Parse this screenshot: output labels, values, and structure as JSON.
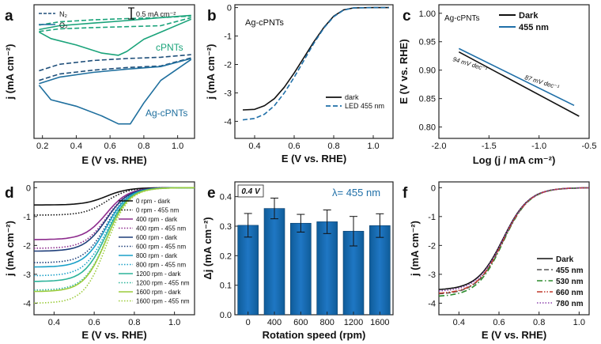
{
  "chart_data": [
    {
      "id": "a",
      "type": "line",
      "letter": "a",
      "xlabel": "E (V vs. RHE)",
      "ylabel": "j (mA cm⁻²)",
      "xlim": [
        0.15,
        1.1
      ],
      "ylim": [
        -3.2,
        0.95
      ],
      "xticks": [
        0.2,
        0.4,
        0.6,
        0.8,
        1.0
      ],
      "xtick_labels": [
        "0.2",
        "0.4",
        "0.6",
        "0.8",
        "1.0"
      ],
      "scale_bar": "0.5 mA cm⁻²",
      "legend": [
        {
          "label": "N₂",
          "style": "dashed"
        },
        {
          "label": "O₂",
          "style": "solid"
        }
      ],
      "annotations": [
        {
          "text": "cPNTs",
          "color": "#1aa37a"
        },
        {
          "text": "Ag-cPNTs",
          "color": "#1f6f9e"
        }
      ],
      "series": [
        {
          "name": "cPNTs N2 upper",
          "color": "#1aa37a",
          "style": "dashed",
          "x": [
            0.18,
            0.3,
            0.5,
            0.7,
            0.9,
            1.08
          ],
          "y": [
            0.32,
            0.42,
            0.48,
            0.52,
            0.55,
            0.6
          ]
        },
        {
          "name": "cPNTs N2 lower",
          "color": "#1aa37a",
          "style": "dashed",
          "x": [
            0.18,
            0.3,
            0.5,
            0.7,
            0.9,
            1.08
          ],
          "y": [
            0.12,
            0.2,
            0.24,
            0.27,
            0.3,
            0.55
          ]
        },
        {
          "name": "cPNTs O2 upper",
          "color": "#1aa37a",
          "style": "solid",
          "x": [
            0.18,
            0.3,
            0.5,
            0.7,
            0.9,
            1.08
          ],
          "y": [
            0.18,
            0.3,
            0.38,
            0.46,
            0.55,
            0.62
          ]
        },
        {
          "name": "cPNTs O2 lower",
          "color": "#1aa37a",
          "style": "solid",
          "x": [
            0.18,
            0.25,
            0.4,
            0.55,
            0.65,
            0.7,
            0.8,
            0.9,
            1.08
          ],
          "y": [
            0.1,
            -0.1,
            -0.3,
            -0.55,
            -0.62,
            -0.5,
            -0.12,
            0.1,
            0.5
          ]
        },
        {
          "name": "Ag-cPNTs N2 upper",
          "color": "#1f4f7a",
          "style": "dashed",
          "x": [
            0.18,
            0.3,
            0.5,
            0.7,
            0.9,
            1.08
          ],
          "y": [
            -1.1,
            -0.9,
            -0.78,
            -0.72,
            -0.68,
            -0.6
          ]
        },
        {
          "name": "Ag-cPNTs N2 lower",
          "color": "#1f4f7a",
          "style": "dashed",
          "x": [
            0.18,
            0.3,
            0.5,
            0.7,
            0.9,
            1.08
          ],
          "y": [
            -1.4,
            -1.2,
            -1.08,
            -1.0,
            -0.95,
            -0.7
          ]
        },
        {
          "name": "Ag-cPNTs O2 upper",
          "color": "#1f6f9e",
          "style": "solid",
          "x": [
            0.18,
            0.3,
            0.5,
            0.7,
            0.9,
            1.08
          ],
          "y": [
            -1.5,
            -1.3,
            -1.15,
            -1.05,
            -0.97,
            -0.72
          ]
        },
        {
          "name": "Ag-cPNTs O2 lower",
          "color": "#1f6f9e",
          "style": "solid",
          "x": [
            0.18,
            0.25,
            0.4,
            0.55,
            0.65,
            0.72,
            0.8,
            0.9,
            1.08
          ],
          "y": [
            -1.55,
            -2.0,
            -2.2,
            -2.5,
            -2.75,
            -2.75,
            -2.1,
            -1.4,
            -0.75
          ]
        }
      ]
    },
    {
      "id": "b",
      "type": "line",
      "letter": "b",
      "xlabel": "E (V vs. RHE)",
      "ylabel": "j (mA cm⁻²)",
      "xlim": [
        0.3,
        1.1
      ],
      "ylim": [
        -4.6,
        0.1
      ],
      "xticks": [
        0.4,
        0.6,
        0.8,
        1.0
      ],
      "xtick_labels": [
        "0.4",
        "0.6",
        "0.8",
        "1.0"
      ],
      "yticks": [
        0,
        -1,
        -2,
        -3,
        -4
      ],
      "ytick_labels": [
        "0",
        "-1",
        "-2",
        "-3",
        "-4"
      ],
      "inset_label": "Ag-cPNTs",
      "series": [
        {
          "name": "dark",
          "color": "#111111",
          "style": "solid",
          "x": [
            0.34,
            0.4,
            0.45,
            0.5,
            0.55,
            0.6,
            0.65,
            0.7,
            0.75,
            0.8,
            0.85,
            0.9,
            1.0,
            1.08
          ],
          "y": [
            -3.6,
            -3.58,
            -3.45,
            -3.2,
            -2.8,
            -2.3,
            -1.75,
            -1.2,
            -0.7,
            -0.3,
            -0.08,
            -0.01,
            0,
            0
          ]
        },
        {
          "name": "LED 455 nm",
          "color": "#1f6fa8",
          "style": "dashed",
          "x": [
            0.34,
            0.4,
            0.45,
            0.5,
            0.55,
            0.6,
            0.65,
            0.7,
            0.75,
            0.8,
            0.85,
            0.9,
            1.0,
            1.08
          ],
          "y": [
            -3.95,
            -3.9,
            -3.75,
            -3.45,
            -3.0,
            -2.45,
            -1.85,
            -1.25,
            -0.72,
            -0.32,
            -0.09,
            -0.01,
            0,
            0
          ]
        }
      ]
    },
    {
      "id": "c",
      "type": "line",
      "letter": "c",
      "xlabel": "Log (j / mA cm⁻²)",
      "ylabel": "E (V vs. RHE)",
      "xlim": [
        -2.0,
        -0.5
      ],
      "ylim": [
        0.78,
        1.015
      ],
      "xticks": [
        -2.0,
        -1.5,
        -1.0,
        -0.5
      ],
      "xtick_labels": [
        "-2.0",
        "-1.5",
        "-1.0",
        "-0.5"
      ],
      "yticks": [
        0.8,
        0.85,
        0.9,
        0.95,
        1.0
      ],
      "ytick_labels": [
        "0.80",
        "0.85",
        "0.90",
        "0.95",
        "1.00"
      ],
      "inset_label": "Ag-cPNTs",
      "annotations": [
        {
          "text": "94 mV dec⁻¹"
        },
        {
          "text": "87 mV dec⁻¹"
        }
      ],
      "series": [
        {
          "name": "Dark",
          "color": "#111111",
          "style": "solid",
          "x": [
            -1.8,
            -0.6
          ],
          "y": [
            0.932,
            0.819
          ]
        },
        {
          "name": "455 nm",
          "color": "#1f6fa8",
          "style": "solid",
          "x": [
            -1.8,
            -0.65
          ],
          "y": [
            0.938,
            0.838
          ]
        }
      ]
    },
    {
      "id": "d",
      "type": "line",
      "letter": "d",
      "xlabel": "E (V vs. RHE)",
      "ylabel": "j (mA cm⁻²)",
      "xlim": [
        0.3,
        1.1
      ],
      "ylim": [
        -4.4,
        0.2
      ],
      "xticks": [
        0.4,
        0.6,
        0.8,
        1.0
      ],
      "xtick_labels": [
        "0.4",
        "0.6",
        "0.8",
        "1.0"
      ],
      "yticks": [
        0,
        -1,
        -2,
        -3,
        -4
      ],
      "ytick_labels": [
        "0",
        "-1",
        "-2",
        "-3",
        "-4"
      ],
      "series": [
        {
          "name": "0 rpm - dark",
          "color": "#111111",
          "style": "solid",
          "limit": -0.6
        },
        {
          "name": "0 rpm - 455 nm",
          "color": "#111111",
          "style": "dotted",
          "limit": -0.95
        },
        {
          "name": "400 rpm - dark",
          "color": "#8e2d8e",
          "style": "solid",
          "limit": -1.8
        },
        {
          "name": "400 rpm - 455 nm",
          "color": "#8e2d8e",
          "style": "dotted",
          "limit": -2.1
        },
        {
          "name": "600 rpm - dark",
          "color": "#1f3f7a",
          "style": "solid",
          "limit": -2.2
        },
        {
          "name": "600 rpm - 455 nm",
          "color": "#1f3f7a",
          "style": "dotted",
          "limit": -2.6
        },
        {
          "name": "800 rpm - dark",
          "color": "#1aa0c8",
          "style": "solid",
          "limit": -2.75
        },
        {
          "name": "800 rpm - 455 nm",
          "color": "#1aa0c8",
          "style": "dotted",
          "limit": -3.05
        },
        {
          "name": "1200 rpm - dark",
          "color": "#2bb39a",
          "style": "solid",
          "limit": -3.25
        },
        {
          "name": "1200 rpm - 455 nm",
          "color": "#2bb39a",
          "style": "dotted",
          "limit": -3.55
        },
        {
          "name": "1600 rpm - dark",
          "color": "#9ccc3c",
          "style": "solid",
          "limit": -3.6
        },
        {
          "name": "1600 rpm - 455 nm",
          "color": "#9ccc3c",
          "style": "dotted",
          "limit": -4.0
        }
      ]
    },
    {
      "id": "e",
      "type": "bar",
      "letter": "e",
      "xlabel": "Rotation speed (rpm)",
      "ylabel": "Δj (mA cm⁻²)",
      "ylim": [
        0.0,
        0.45
      ],
      "yticks": [
        0.0,
        0.1,
        0.2,
        0.3,
        0.4
      ],
      "ytick_labels": [
        "0.0",
        "0.1",
        "0.2",
        "0.3",
        "0.4"
      ],
      "categories": [
        "0",
        "400",
        "600",
        "800",
        "1200",
        "1600"
      ],
      "values": [
        0.303,
        0.36,
        0.31,
        0.315,
        0.283,
        0.302
      ],
      "errors": [
        0.04,
        0.035,
        0.03,
        0.04,
        0.05,
        0.04
      ],
      "tag": "0.4 V",
      "annotation": "λ= 455 nm",
      "color": "#1f77c4"
    },
    {
      "id": "f",
      "type": "line",
      "letter": "f",
      "xlabel": "E (V vs. RHE)",
      "ylabel": "j (mA cm⁻²)",
      "xlim": [
        0.3,
        1.05
      ],
      "ylim": [
        -4.4,
        0.2
      ],
      "xticks": [
        0.4,
        0.6,
        0.8,
        1.0
      ],
      "xtick_labels": [
        "0.4",
        "0.6",
        "0.8",
        "1.0"
      ],
      "yticks": [
        0,
        -1,
        -2,
        -3,
        -4
      ],
      "ytick_labels": [
        "0",
        "-1",
        "-2",
        "-3",
        "-4"
      ],
      "series": [
        {
          "name": "Dark",
          "color": "#111111",
          "style": "solid",
          "limit": -3.55
        },
        {
          "name": "455 nm",
          "color": "#555555",
          "style": "dashed",
          "limit": -3.7
        },
        {
          "name": "530 nm",
          "color": "#2a8a2a",
          "style": "dashdot",
          "limit": -3.78
        },
        {
          "name": "660 nm",
          "color": "#c0392b",
          "style": "dashdotdot",
          "limit": -3.68
        },
        {
          "name": "780 nm",
          "color": "#8e44ad",
          "style": "dotted",
          "limit": -3.6
        }
      ]
    }
  ]
}
